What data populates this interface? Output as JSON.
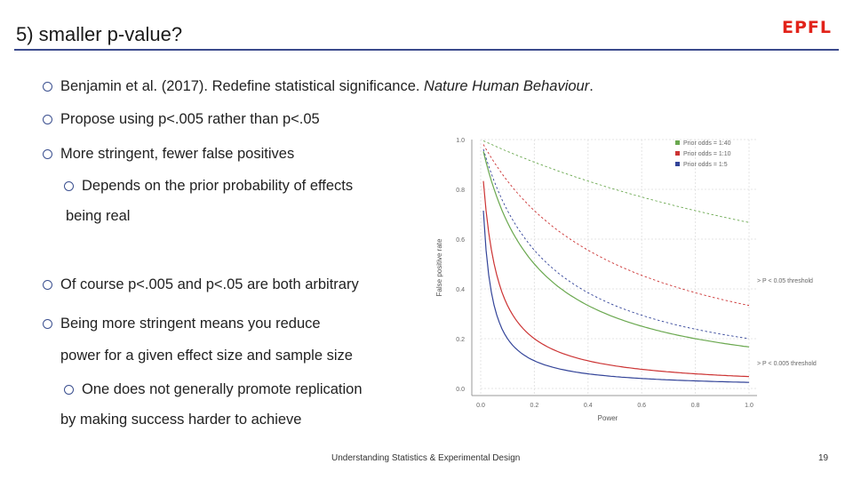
{
  "slide": {
    "title": "5) smaller p-value?",
    "logo": "EPFL",
    "footer": "Understanding Statistics & Experimental Design",
    "page_number": "19"
  },
  "bullets": {
    "b1_plain": "Benjamin et al. (2017). Redefine statistical significance. ",
    "b1_italic": "Nature Human Behaviour",
    "b1_end": ".",
    "b2": "Propose using p<.005 rather than p<.05",
    "b3": "More stringent, fewer false positives",
    "b3_sub_line1": "Depends on the prior probability of effects",
    "b3_sub_line2": "being real",
    "b4": "Of course p<.005 and p<.05 are both arbitrary",
    "b5_line1": "Being more stringent means you reduce",
    "b5_line2": "power for a given effect size and sample size",
    "b5_sub_line1": "One does not generally promote replication",
    "b5_sub_line2": "by making success harder to achieve"
  },
  "chart_data": {
    "type": "line",
    "xlabel": "Power",
    "ylabel": "False positive rate",
    "xlim": [
      0,
      1
    ],
    "ylim": [
      0,
      1
    ],
    "x_ticks": [
      "0.0",
      "0.2",
      "0.4",
      "0.6",
      "0.8",
      "1.0"
    ],
    "y_ticks": [
      "0.0",
      "0.2",
      "0.4",
      "0.6",
      "0.8",
      "1.0"
    ],
    "legend": [
      "Prior odds = 1:40",
      "Prior odds = 1:10",
      "Prior odds = 1:5"
    ],
    "annotations": [
      "P < 0.05 threshold",
      "P < 0.005 threshold"
    ],
    "colors": {
      "odds_1_40": "#6aa84f",
      "odds_1_10": "#cc3333",
      "odds_1_5": "#334499"
    },
    "series": [
      {
        "name": "Prior odds = 1:40",
        "alpha": 0.05,
        "style": "dashed",
        "color": "#6aa84f",
        "odds": 0.025
      },
      {
        "name": "Prior odds = 1:10",
        "alpha": 0.05,
        "style": "dashed",
        "color": "#cc3333",
        "odds": 0.1
      },
      {
        "name": "Prior odds = 1:5",
        "alpha": 0.05,
        "style": "dashed",
        "color": "#334499",
        "odds": 0.2
      },
      {
        "name": "Prior odds = 1:40",
        "alpha": 0.005,
        "style": "solid",
        "color": "#6aa84f",
        "odds": 0.025
      },
      {
        "name": "Prior odds = 1:10",
        "alpha": 0.005,
        "style": "solid",
        "color": "#cc3333",
        "odds": 0.1
      },
      {
        "name": "Prior odds = 1:5",
        "alpha": 0.005,
        "style": "solid",
        "color": "#334499",
        "odds": 0.2
      }
    ]
  }
}
